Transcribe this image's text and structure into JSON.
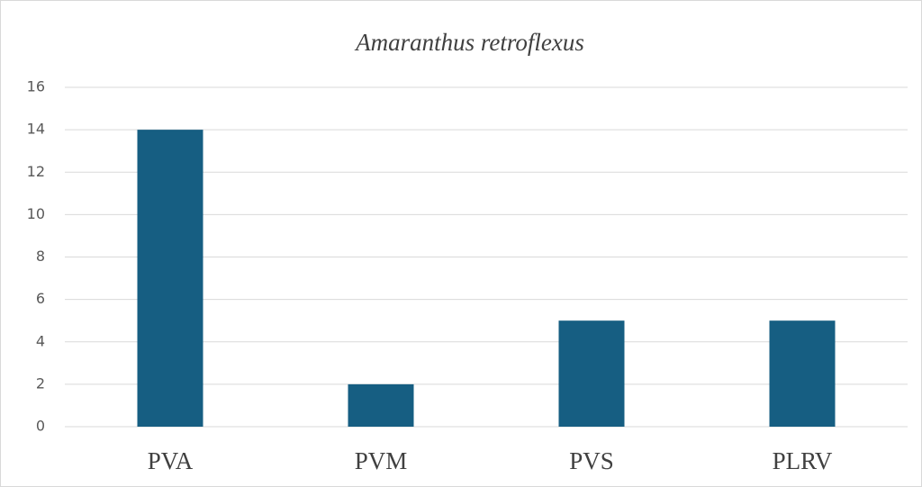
{
  "chart_data": {
    "type": "bar",
    "title": "Amaranthus retroflexus",
    "categories": [
      "PVA",
      "PVM",
      "PVS",
      "PLRV"
    ],
    "values": [
      14,
      2,
      5,
      5
    ],
    "color": "#165e82",
    "ylim": [
      0,
      16
    ],
    "yticks": [
      0,
      2,
      4,
      6,
      8,
      10,
      12,
      14,
      16
    ],
    "grid": true
  }
}
